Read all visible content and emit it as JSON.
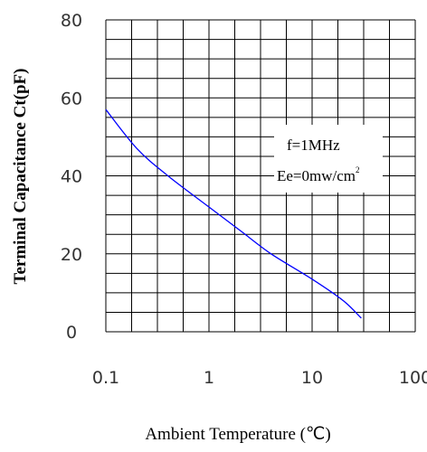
{
  "chart_data": {
    "type": "line",
    "x_scale": "log",
    "xlim": [
      0.1,
      100
    ],
    "ylim": [
      0,
      80
    ],
    "x_ticks": [
      "0.1",
      "1",
      "10",
      "100"
    ],
    "y_ticks": [
      "0",
      "20",
      "40",
      "60",
      "80"
    ],
    "xlabel": "Ambient Temperature (℃)",
    "ylabel": "Terminal Capacitance Ct(pF)",
    "grid": true,
    "annotation": {
      "line1": "f=1MHz",
      "line2_main": "Ee=0mw/cm",
      "line2_sup": "2"
    },
    "series": [
      {
        "color": "#0000ff",
        "x": [
          0.1,
          0.2,
          0.4,
          1,
          2,
          4,
          10,
          20,
          30
        ],
        "y": [
          57,
          47,
          40,
          32,
          26,
          20,
          13.5,
          8,
          3.5
        ]
      }
    ]
  }
}
